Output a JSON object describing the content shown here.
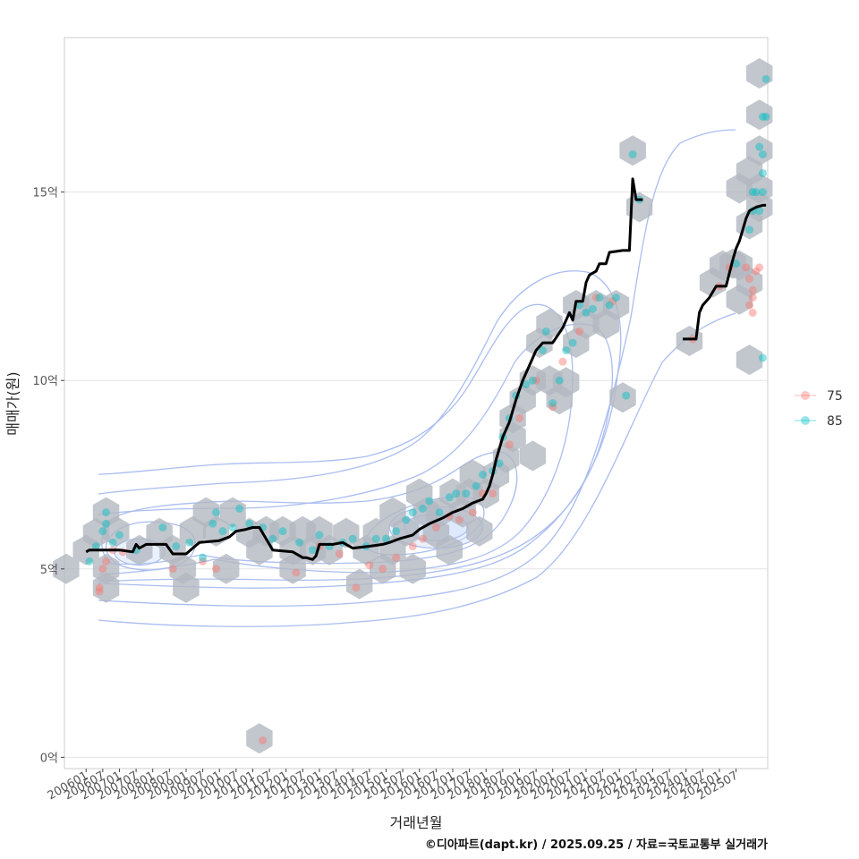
{
  "chart_data": {
    "type": "scatter",
    "xlabel": "거래년월",
    "ylabel": "매매가(원)",
    "caption": "©디아파트(dapt.kr) / 2025.09.25 / 자료=국토교통부 실거래가",
    "ylim": [
      -0.3,
      19.1
    ],
    "y_ticks": [
      0,
      5,
      10,
      15
    ],
    "y_tick_labels": [
      "0억",
      "5억",
      "10억",
      "15억"
    ],
    "x_ticks": [
      2006.0,
      2006.5,
      2007.0,
      2007.5,
      2008.0,
      2008.5,
      2009.0,
      2009.5,
      2010.0,
      2010.5,
      2011.0,
      2011.5,
      2012.0,
      2012.5,
      2013.0,
      2013.5,
      2014.0,
      2014.5,
      2015.0,
      2015.5,
      2016.0,
      2016.5,
      2017.0,
      2017.5,
      2018.0,
      2018.5,
      2019.0,
      2019.5,
      2020.0,
      2020.5,
      2021.0,
      2021.5,
      2022.0,
      2022.5,
      2023.0,
      2023.5,
      2024.0,
      2024.5,
      2025.0,
      2025.5
    ],
    "x_tick_labels": [
      "200601",
      "200607",
      "200701",
      "200707",
      "200801",
      "200807",
      "200901",
      "200907",
      "201001",
      "201007",
      "201101",
      "201107",
      "201201",
      "201207",
      "201301",
      "201307",
      "201401",
      "201407",
      "201501",
      "201507",
      "201601",
      "201607",
      "201701",
      "201707",
      "201801",
      "201807",
      "201901",
      "201907",
      "202001",
      "202007",
      "202101",
      "202107",
      "202201",
      "202207",
      "202301",
      "202307",
      "202401",
      "202407",
      "202501",
      "202507"
    ],
    "xlim": [
      2005.35,
      2026.45
    ],
    "legend": {
      "position": "right",
      "items": [
        {
          "label": "75",
          "color": "#F8766D"
        },
        {
          "label": "85",
          "color": "#00BFC4"
        }
      ]
    },
    "colors": {
      "hex": "#b3b8c0",
      "trend": "#000000",
      "contour": "#aabdf0",
      "grid": "#e3e3e3",
      "panel_border": "#cccccc"
    },
    "hexbins": [
      [
        2005.4,
        5.0
      ],
      [
        2006.0,
        5.5
      ],
      [
        2006.3,
        5.95
      ],
      [
        2006.6,
        6.5
      ],
      [
        2006.9,
        6.0
      ],
      [
        2006.6,
        5.0
      ],
      [
        2006.6,
        4.5
      ],
      [
        2007.6,
        5.5
      ],
      [
        2008.2,
        5.95
      ],
      [
        2008.6,
        5.5
      ],
      [
        2008.9,
        5.0
      ],
      [
        2009.2,
        6.0
      ],
      [
        2009.0,
        4.5
      ],
      [
        2009.6,
        6.5
      ],
      [
        2009.9,
        6.0
      ],
      [
        2010.2,
        5.0
      ],
      [
        2010.4,
        6.5
      ],
      [
        2010.9,
        5.95
      ],
      [
        2011.2,
        5.5
      ],
      [
        2011.4,
        6.0
      ],
      [
        2011.9,
        6.0
      ],
      [
        2011.2,
        0.5
      ],
      [
        2012.2,
        5.5
      ],
      [
        2012.5,
        6.0
      ],
      [
        2012.2,
        5.0
      ],
      [
        2012.8,
        5.5
      ],
      [
        2013.0,
        6.0
      ],
      [
        2013.3,
        5.5
      ],
      [
        2013.8,
        5.95
      ],
      [
        2014.2,
        4.6
      ],
      [
        2014.4,
        5.5
      ],
      [
        2014.7,
        5.95
      ],
      [
        2014.9,
        5.0
      ],
      [
        2015.2,
        5.5
      ],
      [
        2015.6,
        6.0
      ],
      [
        2015.2,
        6.5
      ],
      [
        2015.8,
        5.0
      ],
      [
        2016.0,
        7.0
      ],
      [
        2016.2,
        6.5
      ],
      [
        2016.5,
        5.95
      ],
      [
        2016.9,
        5.5
      ],
      [
        2016.6,
        6.5
      ],
      [
        2017.0,
        7.0
      ],
      [
        2017.3,
        6.5
      ],
      [
        2017.6,
        7.5
      ],
      [
        2017.8,
        6.0
      ],
      [
        2017.5,
        7.0
      ],
      [
        2018.0,
        7.0
      ],
      [
        2018.3,
        7.5
      ],
      [
        2018.6,
        7.95
      ],
      [
        2018.8,
        8.5
      ],
      [
        2018.8,
        9.0
      ],
      [
        2019.1,
        9.5
      ],
      [
        2019.4,
        8.0
      ],
      [
        2019.4,
        10.0
      ],
      [
        2019.6,
        11.0
      ],
      [
        2019.9,
        11.5
      ],
      [
        2019.9,
        10.0
      ],
      [
        2020.2,
        9.5
      ],
      [
        2020.4,
        9.95
      ],
      [
        2020.7,
        11.0
      ],
      [
        2020.7,
        12.0
      ],
      [
        2021.0,
        11.5
      ],
      [
        2021.3,
        12.0
      ],
      [
        2021.6,
        11.5
      ],
      [
        2021.9,
        12.0
      ],
      [
        2022.1,
        9.55
      ],
      [
        2022.4,
        16.1
      ],
      [
        2022.6,
        14.6
      ],
      [
        2024.1,
        11.05
      ],
      [
        2024.8,
        12.6
      ],
      [
        2025.1,
        13.05
      ],
      [
        2025.4,
        13.1
      ],
      [
        2025.6,
        15.1
      ],
      [
        2025.6,
        13.05
      ],
      [
        2025.6,
        12.15
      ],
      [
        2025.9,
        15.55
      ],
      [
        2025.9,
        14.15
      ],
      [
        2025.9,
        12.6
      ],
      [
        2025.9,
        10.55
      ],
      [
        2026.2,
        18.15
      ],
      [
        2026.2,
        17.05
      ],
      [
        2026.2,
        16.1
      ],
      [
        2026.2,
        15.1
      ],
      [
        2026.2,
        14.6
      ]
    ],
    "series": [
      {
        "name": "75",
        "color": "#F8766D",
        "points": [
          [
            2006.4,
            4.5
          ],
          [
            2006.5,
            5.0
          ],
          [
            2006.6,
            5.2
          ],
          [
            2006.4,
            4.4
          ],
          [
            2006.8,
            5.5
          ],
          [
            2007.1,
            5.45
          ],
          [
            2008.6,
            5.0
          ],
          [
            2009.5,
            5.2
          ],
          [
            2009.9,
            5.0
          ],
          [
            2011.3,
            0.45
          ],
          [
            2012.3,
            4.9
          ],
          [
            2013.0,
            5.6
          ],
          [
            2013.6,
            5.4
          ],
          [
            2014.1,
            4.5
          ],
          [
            2014.5,
            5.1
          ],
          [
            2014.9,
            5.0
          ],
          [
            2015.3,
            5.3
          ],
          [
            2015.8,
            5.6
          ],
          [
            2016.1,
            5.8
          ],
          [
            2016.5,
            6.1
          ],
          [
            2016.9,
            6.4
          ],
          [
            2017.2,
            6.3
          ],
          [
            2017.6,
            6.5
          ],
          [
            2017.9,
            7.0
          ],
          [
            2018.2,
            7.0
          ],
          [
            2018.7,
            8.3
          ],
          [
            2019.0,
            9.0
          ],
          [
            2019.5,
            10.0
          ],
          [
            2020.0,
            9.3
          ],
          [
            2020.3,
            10.5
          ],
          [
            2020.8,
            11.3
          ],
          [
            2021.3,
            12.2
          ],
          [
            2021.8,
            12.1
          ],
          [
            2024.2,
            11.1
          ],
          [
            2025.0,
            12.5
          ],
          [
            2025.3,
            13.0
          ],
          [
            2025.9,
            12.0
          ],
          [
            2026.0,
            12.4
          ],
          [
            2026.1,
            12.9
          ],
          [
            2026.0,
            12.2
          ],
          [
            2025.9,
            12.7
          ],
          [
            2026.0,
            11.8
          ],
          [
            2026.2,
            13.0
          ],
          [
            2025.8,
            13.0
          ]
        ]
      },
      {
        "name": "85",
        "color": "#00BFC4",
        "points": [
          [
            2006.1,
            5.2
          ],
          [
            2006.3,
            5.6
          ],
          [
            2006.5,
            6.0
          ],
          [
            2006.6,
            6.2
          ],
          [
            2006.8,
            5.7
          ],
          [
            2007.0,
            5.9
          ],
          [
            2006.6,
            6.5
          ],
          [
            2007.5,
            5.5
          ],
          [
            2008.3,
            6.1
          ],
          [
            2008.7,
            5.6
          ],
          [
            2009.1,
            5.7
          ],
          [
            2009.5,
            5.3
          ],
          [
            2009.8,
            6.2
          ],
          [
            2009.9,
            6.5
          ],
          [
            2010.1,
            6.0
          ],
          [
            2010.4,
            6.1
          ],
          [
            2010.6,
            6.6
          ],
          [
            2010.9,
            6.2
          ],
          [
            2011.3,
            6.1
          ],
          [
            2011.6,
            5.8
          ],
          [
            2011.9,
            6.0
          ],
          [
            2012.4,
            5.7
          ],
          [
            2012.8,
            5.5
          ],
          [
            2013.0,
            5.9
          ],
          [
            2013.3,
            5.6
          ],
          [
            2013.7,
            5.7
          ],
          [
            2014.0,
            5.8
          ],
          [
            2014.4,
            5.6
          ],
          [
            2014.7,
            5.8
          ],
          [
            2015.0,
            5.8
          ],
          [
            2015.3,
            6.0
          ],
          [
            2015.6,
            6.3
          ],
          [
            2015.8,
            6.5
          ],
          [
            2016.1,
            6.6
          ],
          [
            2016.3,
            6.8
          ],
          [
            2016.6,
            6.5
          ],
          [
            2016.9,
            6.9
          ],
          [
            2017.1,
            7.0
          ],
          [
            2017.4,
            7.0
          ],
          [
            2017.7,
            7.2
          ],
          [
            2017.9,
            7.5
          ],
          [
            2018.2,
            7.6
          ],
          [
            2018.4,
            7.8
          ],
          [
            2018.5,
            8.5
          ],
          [
            2018.7,
            9.0
          ],
          [
            2018.9,
            9.6
          ],
          [
            2019.2,
            9.9
          ],
          [
            2019.4,
            10.0
          ],
          [
            2019.7,
            10.8
          ],
          [
            2019.8,
            11.3
          ],
          [
            2020.0,
            9.4
          ],
          [
            2020.2,
            10.0
          ],
          [
            2020.4,
            10.8
          ],
          [
            2020.6,
            11.0
          ],
          [
            2020.8,
            12.0
          ],
          [
            2021.0,
            11.8
          ],
          [
            2021.2,
            11.9
          ],
          [
            2021.4,
            12.2
          ],
          [
            2021.7,
            12.0
          ],
          [
            2021.9,
            12.2
          ],
          [
            2022.2,
            9.6
          ],
          [
            2022.4,
            16.0
          ],
          [
            2022.6,
            14.8
          ],
          [
            2025.5,
            13.1
          ],
          [
            2025.9,
            14.0
          ],
          [
            2026.0,
            14.5
          ],
          [
            2026.0,
            15.0
          ],
          [
            2026.1,
            15.0
          ],
          [
            2026.3,
            15.5
          ],
          [
            2026.3,
            16.0
          ],
          [
            2026.3,
            15.0
          ],
          [
            2026.3,
            17.0
          ],
          [
            2026.4,
            17.0
          ],
          [
            2026.4,
            18.0
          ],
          [
            2026.3,
            10.6
          ],
          [
            2026.2,
            14.5
          ],
          [
            2026.2,
            16.2
          ]
        ]
      }
    ],
    "trend_segments": [
      [
        [
          2006.0,
          5.45
        ],
        [
          2006.1,
          5.5
        ],
        [
          2007.0,
          5.5
        ],
        [
          2007.4,
          5.45
        ],
        [
          2007.5,
          5.65
        ],
        [
          2007.6,
          5.55
        ],
        [
          2007.8,
          5.65
        ],
        [
          2008.4,
          5.65
        ],
        [
          2008.6,
          5.4
        ],
        [
          2009.0,
          5.4
        ],
        [
          2009.2,
          5.55
        ],
        [
          2009.4,
          5.7
        ],
        [
          2010.0,
          5.75
        ],
        [
          2010.3,
          5.85
        ],
        [
          2010.5,
          6.0
        ],
        [
          2010.8,
          6.05
        ],
        [
          2011.0,
          6.1
        ],
        [
          2011.2,
          6.1
        ],
        [
          2011.6,
          5.5
        ],
        [
          2012.2,
          5.45
        ],
        [
          2012.5,
          5.3
        ],
        [
          2012.6,
          5.3
        ],
        [
          2012.8,
          5.25
        ],
        [
          2012.9,
          5.35
        ],
        [
          2013.0,
          5.65
        ],
        [
          2013.4,
          5.65
        ],
        [
          2013.7,
          5.7
        ],
        [
          2014.0,
          5.55
        ],
        [
          2014.5,
          5.6
        ],
        [
          2014.9,
          5.65
        ],
        [
          2015.1,
          5.7
        ],
        [
          2015.4,
          5.8
        ],
        [
          2015.8,
          5.9
        ],
        [
          2016.0,
          6.05
        ],
        [
          2016.3,
          6.2
        ],
        [
          2016.7,
          6.35
        ],
        [
          2017.0,
          6.5
        ],
        [
          2017.3,
          6.6
        ],
        [
          2017.6,
          6.75
        ],
        [
          2017.9,
          6.85
        ],
        [
          2018.0,
          7.0
        ],
        [
          2018.1,
          7.2
        ],
        [
          2018.2,
          7.5
        ],
        [
          2018.3,
          7.9
        ],
        [
          2018.5,
          8.5
        ],
        [
          2018.7,
          8.9
        ],
        [
          2018.9,
          9.5
        ],
        [
          2019.1,
          10.0
        ],
        [
          2019.3,
          10.4
        ],
        [
          2019.5,
          10.8
        ],
        [
          2019.7,
          11.0
        ],
        [
          2020.0,
          11.0
        ],
        [
          2020.3,
          11.4
        ],
        [
          2020.5,
          11.8
        ],
        [
          2020.6,
          11.6
        ],
        [
          2020.7,
          12.1
        ],
        [
          2020.9,
          12.1
        ],
        [
          2021.0,
          12.6
        ],
        [
          2021.1,
          12.8
        ],
        [
          2021.3,
          12.9
        ],
        [
          2021.4,
          13.1
        ],
        [
          2021.6,
          13.1
        ],
        [
          2021.7,
          13.4
        ],
        [
          2022.1,
          13.45
        ],
        [
          2022.3,
          13.45
        ],
        [
          2022.4,
          15.35
        ],
        [
          2022.5,
          14.8
        ],
        [
          2022.7,
          14.8
        ]
      ],
      [
        [
          2023.9,
          11.1
        ],
        [
          2024.3,
          11.1
        ],
        [
          2024.4,
          11.8
        ],
        [
          2024.5,
          12.0
        ],
        [
          2024.7,
          12.2
        ],
        [
          2024.9,
          12.5
        ],
        [
          2025.2,
          12.5
        ],
        [
          2025.4,
          13.2
        ],
        [
          2025.5,
          13.5
        ],
        [
          2025.6,
          13.7
        ],
        [
          2025.7,
          14.0
        ],
        [
          2025.8,
          14.3
        ],
        [
          2025.9,
          14.5
        ],
        [
          2026.1,
          14.6
        ],
        [
          2026.3,
          14.65
        ],
        [
          2026.4,
          14.65
        ]
      ]
    ],
    "density_contours": [
      {
        "cx": 2007.6,
        "cy": 5.45,
        "rx": 0.75,
        "ry": 0.35
      },
      {
        "cx": 2016.5,
        "cy": 6.1,
        "rx": 1.4,
        "ry": 0.55
      },
      {
        "cx": 2016.5,
        "cy": 6.1,
        "rx": 0.95,
        "ry": 0.35
      }
    ]
  }
}
